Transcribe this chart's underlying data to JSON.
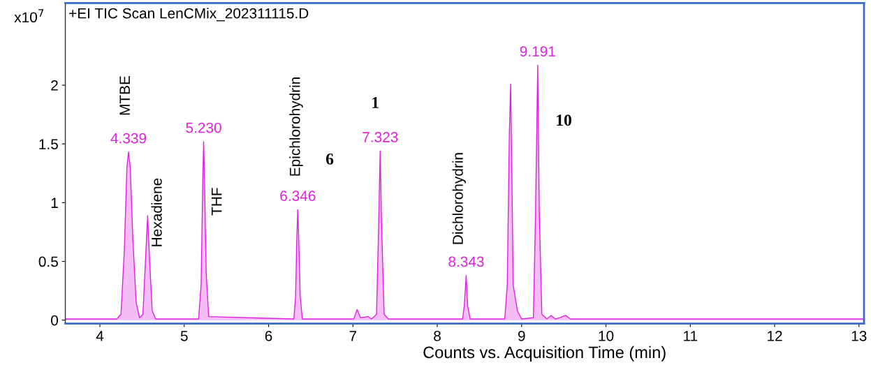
{
  "chart_data": {
    "type": "area",
    "title": "+EI TIC Scan LenCMix_202311115.D",
    "xlabel": "Counts vs. Acquisition Time (min)",
    "ylabel": "x10$^{7}$",
    "series": [
      {
        "color": "#e020e0",
        "x": [
          3.59,
          4.2,
          4.25,
          4.29,
          4.32,
          4.339,
          4.36,
          4.39,
          4.43,
          4.47,
          4.51,
          4.54,
          4.566,
          4.59,
          4.62,
          4.66,
          5.17,
          5.2,
          5.22,
          5.23,
          5.24,
          5.26,
          5.29,
          5.75,
          6.3,
          6.32,
          6.335,
          6.346,
          6.357,
          6.375,
          6.4,
          7.01,
          7.05,
          7.09,
          7.18,
          7.22,
          7.28,
          7.305,
          7.323,
          7.34,
          7.37,
          7.42,
          8.3,
          8.32,
          8.343,
          8.36,
          8.39,
          8.8,
          8.83,
          8.855,
          8.87,
          8.885,
          8.9,
          8.95,
          9.0,
          9.14,
          9.165,
          9.191,
          9.21,
          9.24,
          9.3,
          9.35,
          9.4,
          9.45,
          9.52,
          9.58,
          13.06
        ],
        "values": [
          0.01,
          0.01,
          0.05,
          0.6,
          1.3,
          1.43,
          1.3,
          0.7,
          0.15,
          0.02,
          0.05,
          0.5,
          0.89,
          0.5,
          0.08,
          0.01,
          0.01,
          0.3,
          1.2,
          1.52,
          1.2,
          0.4,
          0.03,
          0.02,
          0.01,
          0.2,
          0.7,
          0.94,
          0.7,
          0.2,
          0.01,
          0.01,
          0.09,
          0.02,
          0.03,
          0.01,
          0.05,
          0.8,
          1.44,
          0.8,
          0.05,
          0.01,
          0.01,
          0.12,
          0.38,
          0.12,
          0.01,
          0.01,
          0.3,
          1.6,
          2.01,
          1.2,
          0.3,
          0.08,
          0.01,
          0.02,
          0.9,
          2.17,
          0.9,
          0.05,
          0.01,
          0.04,
          0.01,
          0.02,
          0.04,
          0.01,
          0.01
        ]
      }
    ],
    "annotations": [
      "MTBE",
      "Hexadiene",
      "THF",
      "Epichlorohydrin",
      "Dichlorohydrin",
      "6",
      "1",
      "10",
      {
        "text": "4.339",
        "x": 4.339,
        "y": 1.43
      },
      {
        "text": "5.230",
        "x": 5.23,
        "y": 1.52
      },
      {
        "text": "6.346",
        "x": 6.346,
        "y": 0.94
      },
      {
        "text": "7.323",
        "x": 7.323,
        "y": 1.44
      },
      {
        "text": "8.343",
        "x": 8.343,
        "y": 0.38
      },
      {
        "text": "9.191",
        "x": 9.191,
        "y": 2.17
      }
    ],
    "xlim": [
      3.59,
      13.06
    ],
    "xticks": [
      4,
      5,
      6,
      7,
      8,
      9,
      10,
      11,
      12,
      13
    ],
    "ylim": [
      -0.03,
      2.7
    ],
    "yticks": [
      0,
      {
        "value": 0.5,
        "label": "0.5"
      },
      1,
      {
        "value": 1.5,
        "label": "1.5"
      },
      2
    ],
    "grid": false,
    "legend": false
  }
}
